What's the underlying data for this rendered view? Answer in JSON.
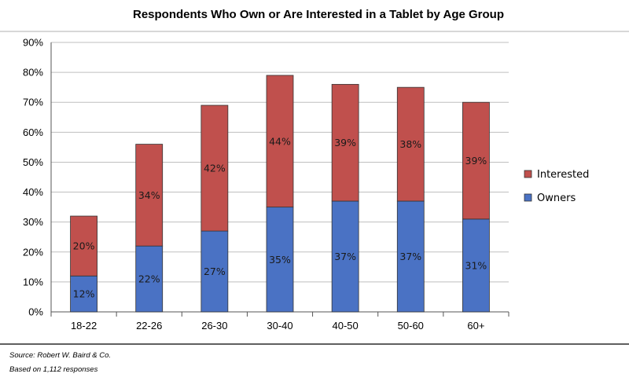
{
  "chart_data": {
    "type": "bar",
    "stacked": true,
    "title": "Respondents Who Own or Are Interested in a Tablet by Age Group",
    "categories": [
      "18-22",
      "22-26",
      "26-30",
      "30-40",
      "40-50",
      "50-60",
      "60+"
    ],
    "series": [
      {
        "name": "Owners",
        "values": [
          12,
          22,
          27,
          35,
          37,
          37,
          31
        ],
        "labels": [
          "12%",
          "22%",
          "27%",
          "35%",
          "37%",
          "37%",
          "31%"
        ],
        "color": "#4a72c4"
      },
      {
        "name": "Interested",
        "values": [
          20,
          34,
          42,
          44,
          39,
          38,
          39
        ],
        "labels": [
          "20%",
          "34%",
          "42%",
          "44%",
          "39%",
          "38%",
          "39%"
        ],
        "color": "#c0504d"
      }
    ],
    "yticks": [
      "0%",
      "10%",
      "20%",
      "30%",
      "40%",
      "50%",
      "60%",
      "70%",
      "80%",
      "90%"
    ],
    "ylim": [
      0,
      90
    ],
    "grid": true,
    "legend": {
      "position": "right",
      "order": [
        "Interested",
        "Owners"
      ]
    }
  },
  "footer": {
    "source": "Source: Robert W. Baird & Co.",
    "responses": "Based on 1,112 responses"
  }
}
